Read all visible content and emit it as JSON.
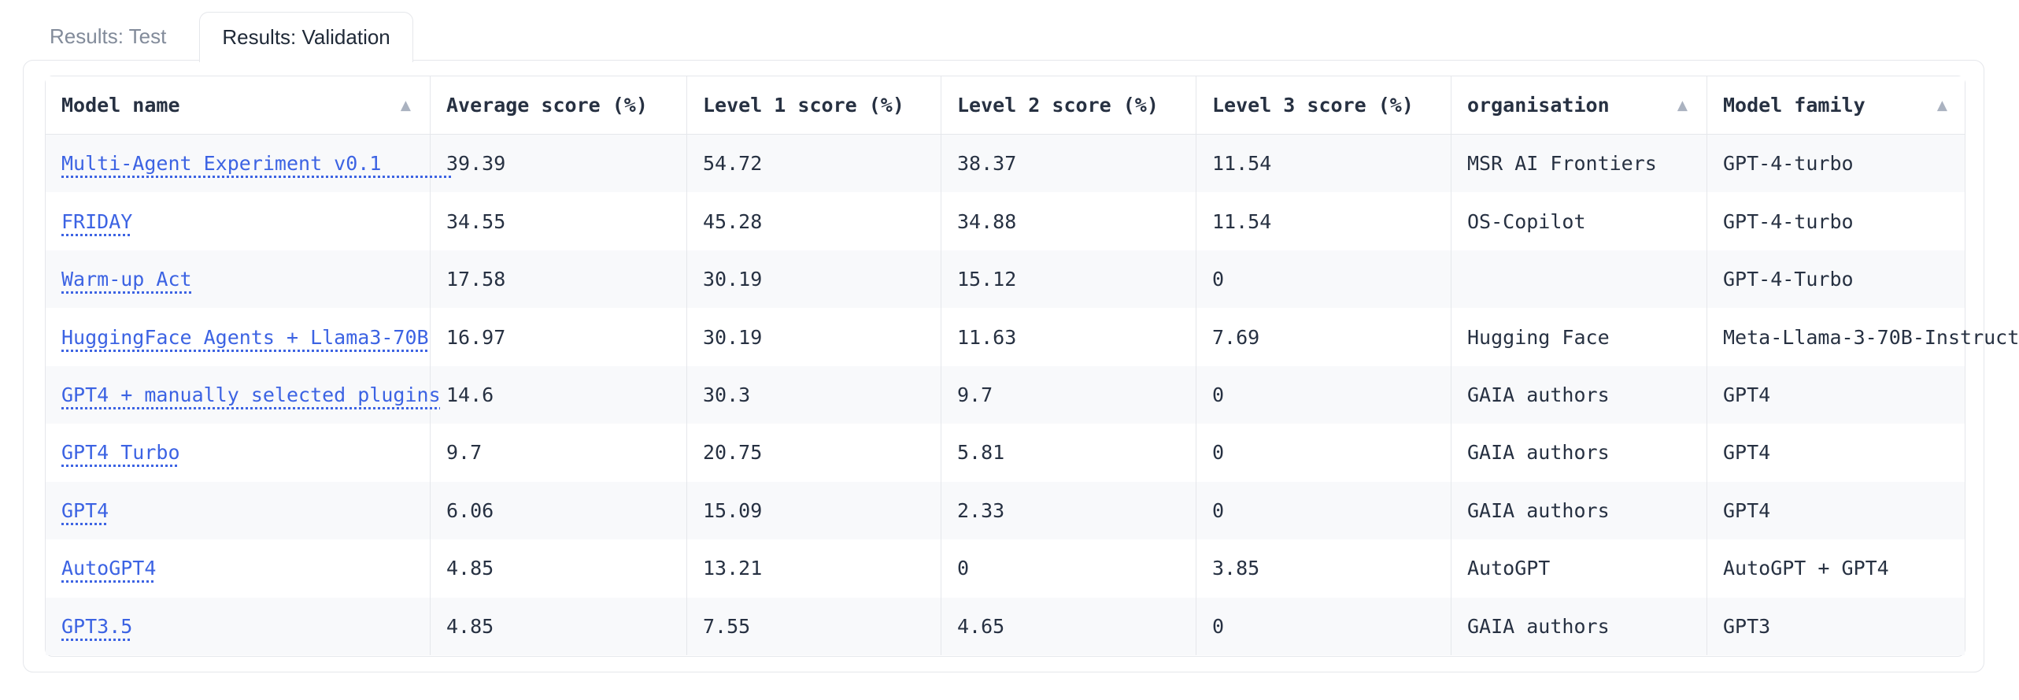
{
  "tabs": [
    {
      "label": "Results: Test",
      "active": false
    },
    {
      "label": "Results: Validation",
      "active": true
    }
  ],
  "icons": {
    "sort_asc": "▲"
  },
  "colors": {
    "link_blue": "#3c63e3",
    "border_gray": "#e5e7eb",
    "row_stripe": "#f8f9fb",
    "table_text": "#273142",
    "sort_arrow_gray": "#aab2c0",
    "inactive_tab_text": "#828b9a",
    "active_tab_text": "#1f2937"
  },
  "table": {
    "columns": [
      {
        "label": "Model name",
        "sort_icon": true
      },
      {
        "label": "Average score (%)",
        "sort_icon": false
      },
      {
        "label": "Level 1 score (%)",
        "sort_icon": false
      },
      {
        "label": "Level 2 score (%)",
        "sort_icon": false
      },
      {
        "label": "Level 3 score (%)",
        "sort_icon": false
      },
      {
        "label": "organisation",
        "sort_icon": true
      },
      {
        "label": "Model family",
        "sort_icon": true
      }
    ],
    "rows": [
      {
        "cells": [
          "Multi-Agent Experiment v0.1      ",
          "39.39",
          "54.72",
          "38.37",
          "11.54",
          "MSR AI Frontiers",
          "GPT-4-turbo"
        ]
      },
      {
        "cells": [
          "FRIDAY",
          "34.55",
          "45.28",
          "34.88",
          "11.54",
          "OS-Copilot",
          "GPT-4-turbo"
        ]
      },
      {
        "cells": [
          "Warm-up Act",
          "17.58",
          "30.19",
          "15.12",
          "0",
          "",
          "GPT-4-Turbo"
        ]
      },
      {
        "cells": [
          "HuggingFace Agents + Llama3-70B",
          "16.97",
          "30.19",
          "11.63",
          "7.69",
          "Hugging Face",
          "Meta-Llama-3-70B-Instruct"
        ]
      },
      {
        "cells": [
          "GPT4 + manually selected plugins",
          "14.6",
          "30.3",
          "9.7",
          "0",
          "GAIA authors",
          "GPT4"
        ]
      },
      {
        "cells": [
          "GPT4 Turbo",
          "9.7",
          "20.75",
          "5.81",
          "0",
          "GAIA authors",
          "GPT4"
        ]
      },
      {
        "cells": [
          "GPT4",
          "6.06",
          "15.09",
          "2.33",
          "0",
          "GAIA authors",
          "GPT4"
        ]
      },
      {
        "cells": [
          "AutoGPT4",
          "4.85",
          "13.21",
          "0",
          "3.85",
          "AutoGPT",
          "AutoGPT + GPT4"
        ]
      },
      {
        "cells": [
          "GPT3.5",
          "4.85",
          "7.55",
          "4.65",
          "0",
          "GAIA authors",
          "GPT3"
        ]
      }
    ]
  }
}
